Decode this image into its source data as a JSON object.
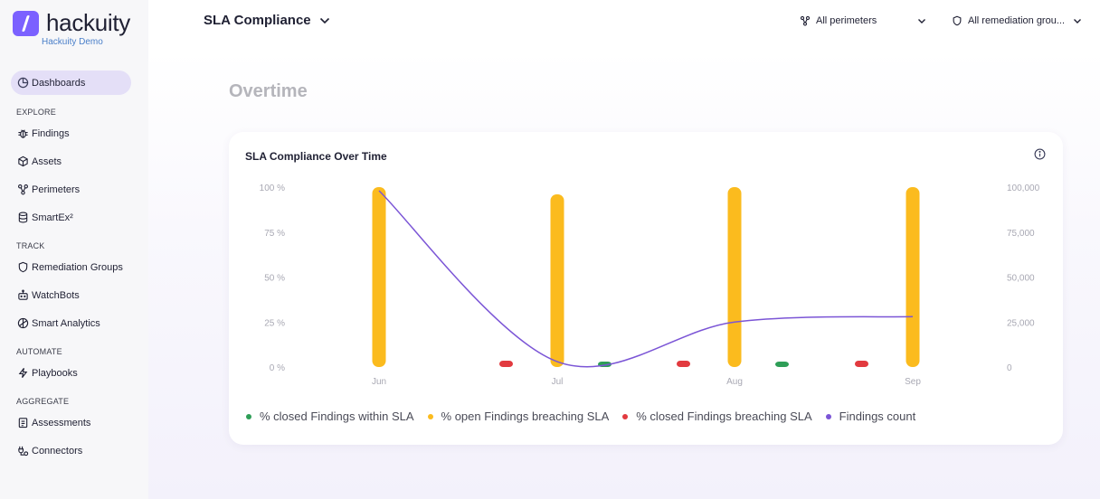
{
  "app": {
    "brand": "hackuity",
    "org": "Hackuity Demo"
  },
  "sidebar": {
    "items": [
      {
        "label": "Dashboards",
        "icon": "dashboard-icon"
      },
      {
        "label": "Findings",
        "icon": "bug-icon"
      },
      {
        "label": "Assets",
        "icon": "cube-icon"
      },
      {
        "label": "Perimeters",
        "icon": "perimeters-icon"
      },
      {
        "label": "SmartEx²",
        "icon": "database-icon"
      },
      {
        "label": "Remediation Groups",
        "icon": "shield-icon"
      },
      {
        "label": "WatchBots",
        "icon": "robot-icon"
      },
      {
        "label": "Smart Analytics",
        "icon": "analytics-icon"
      },
      {
        "label": "Playbooks",
        "icon": "bolt-icon"
      },
      {
        "label": "Assessments",
        "icon": "clipboard-icon"
      },
      {
        "label": "Connectors",
        "icon": "plug-icon"
      }
    ],
    "sections": [
      "EXPLORE",
      "TRACK",
      "AUTOMATE",
      "AGGREGATE"
    ],
    "active": "Dashboards"
  },
  "header": {
    "title": "SLA Compliance",
    "perimeter_filter": "All perimeters",
    "group_filter": "All remediation grou..."
  },
  "main": {
    "section_title": "Overtime",
    "card_title": "SLA Compliance Over Time"
  },
  "colors": {
    "accent": "#7b61ff",
    "green": "#2e9e57",
    "yellow": "#fbbb1e",
    "red": "#e23a3f",
    "purple": "#7b55d6"
  },
  "chart_data": {
    "type": "bar",
    "title": "SLA Compliance Over Time",
    "categories": [
      "Jun",
      "Jul",
      "Aug",
      "Sep"
    ],
    "y_left": {
      "ticks": [
        "100 %",
        "75 %",
        "50 %",
        "25 %",
        "0 %"
      ],
      "ylim": [
        0,
        100
      ]
    },
    "y_right": {
      "ticks": [
        "100,000",
        "75,000",
        "50,000",
        "25,000",
        "0"
      ],
      "ylim": [
        0,
        100000
      ]
    },
    "series": [
      {
        "name": "% closed Findings within SLA",
        "color": "#2e9e57",
        "values": [
          0,
          3,
          3,
          0
        ]
      },
      {
        "name": "% open Findings breaching SLA",
        "color": "#fbbb1e",
        "values": [
          100,
          96,
          100,
          100
        ]
      },
      {
        "name": "% closed Findings breaching SLA",
        "color": "#e23a3f",
        "values": [
          0,
          4,
          3,
          3
        ]
      },
      {
        "name": "Findings count",
        "color": "#7b55d6",
        "type": "line",
        "axis": "right",
        "values": [
          98000,
          3000,
          25000,
          28000
        ]
      }
    ],
    "grid": false,
    "legend_position": "bottom-left"
  }
}
